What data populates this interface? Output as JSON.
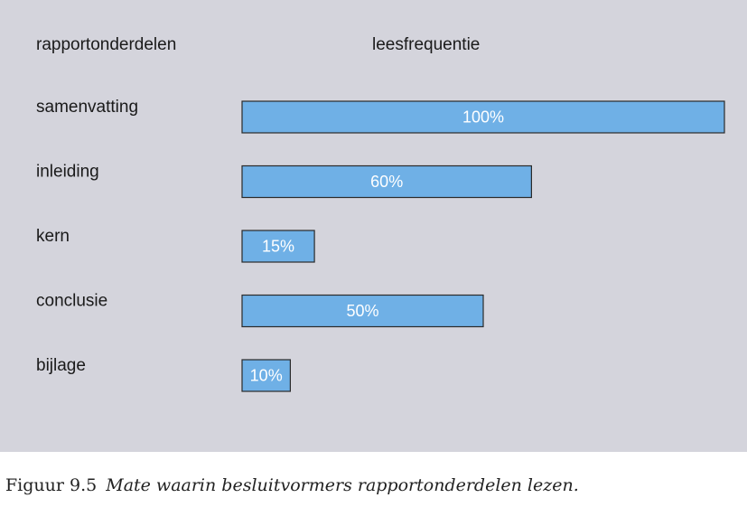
{
  "chart_data": {
    "type": "bar",
    "orientation": "horizontal",
    "column_header_categories": "rapportonderdelen",
    "column_header_values": "leesfrequentie",
    "categories": [
      "samenvatting",
      "inleiding",
      "kern",
      "conclusie",
      "bijlage"
    ],
    "values": [
      100,
      60,
      15,
      50,
      10
    ],
    "value_suffix": "%",
    "xlim": [
      0,
      100
    ],
    "grid": false,
    "bar_color": "#6fb0e6",
    "background_color": "#d4d4dc"
  },
  "caption": {
    "number": "Figuur 9.5",
    "text": "Mate waarin besluitvormers rapportonderdelen lezen."
  }
}
